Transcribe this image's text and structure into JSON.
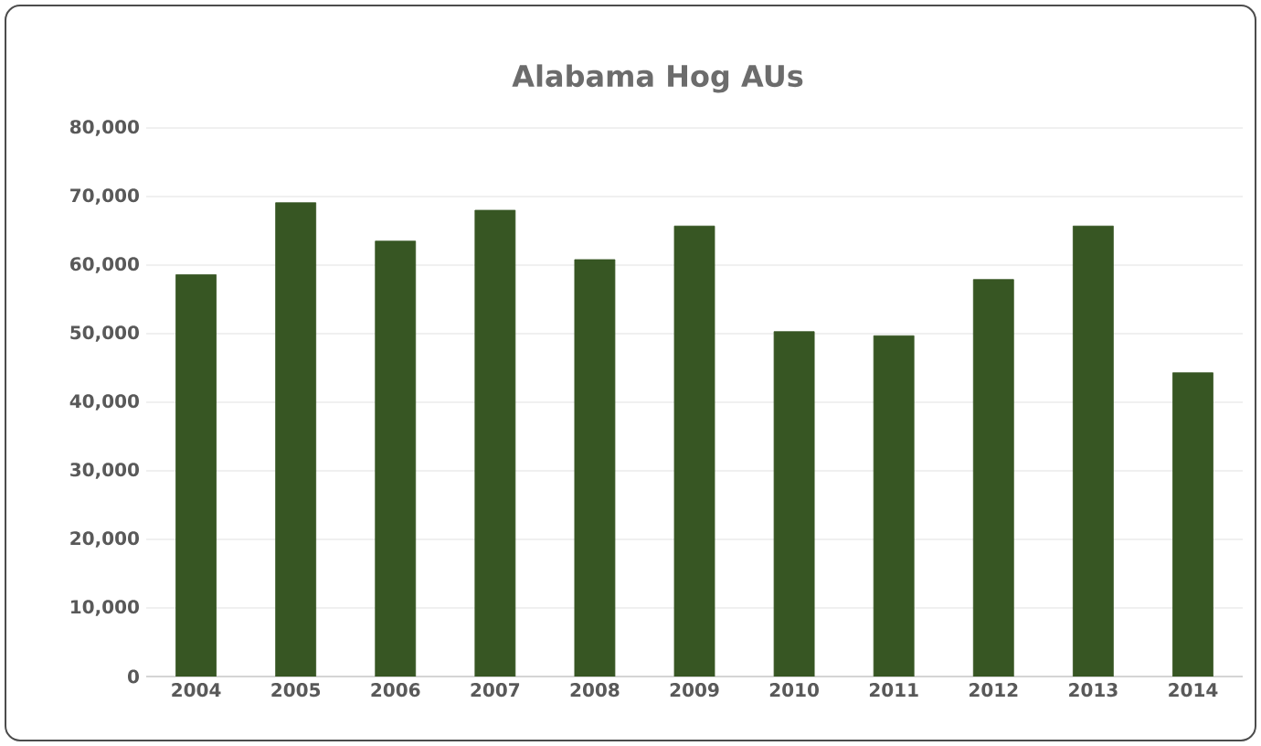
{
  "chart_data": {
    "type": "bar",
    "title": "Alabama Hog AUs",
    "categories": [
      "2004",
      "2005",
      "2006",
      "2007",
      "2008",
      "2009",
      "2010",
      "2011",
      "2012",
      "2013",
      "2014"
    ],
    "values": [
      58600,
      69100,
      63500,
      68000,
      60800,
      65700,
      50300,
      49700,
      57900,
      65700,
      44300
    ],
    "color": "#375623",
    "ylim": [
      0,
      80000
    ],
    "yticks": [
      {
        "value": 0,
        "label": "0"
      },
      {
        "value": 10000,
        "label": "10,000"
      },
      {
        "value": 20000,
        "label": "20,000"
      },
      {
        "value": 30000,
        "label": "30,000"
      },
      {
        "value": 40000,
        "label": "40,000"
      },
      {
        "value": 50000,
        "label": "50,000"
      },
      {
        "value": 60000,
        "label": "60,000"
      },
      {
        "value": 70000,
        "label": "70,000"
      },
      {
        "value": 80000,
        "label": "80,000"
      }
    ],
    "grid": "y"
  }
}
